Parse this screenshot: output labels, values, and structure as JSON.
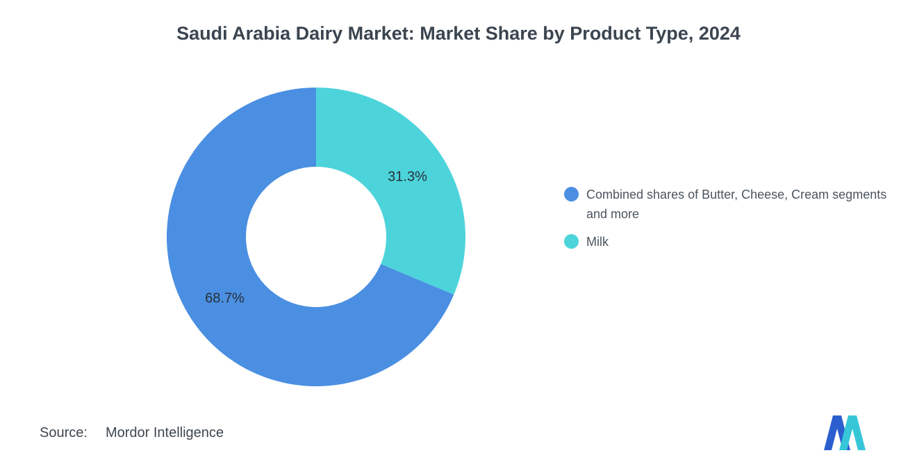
{
  "title": "Saudi Arabia Dairy Market: Market Share by Product Type, 2024",
  "chart_data": {
    "type": "pie",
    "subtype": "donut",
    "title": "Saudi Arabia Dairy Market: Market Share by Product Type, 2024",
    "unit": "%",
    "start_angle": 112.7,
    "center": [
      455,
      341
    ],
    "outer_radius": 215,
    "inner_radius": 101,
    "legend_position": "right",
    "segments": [
      {
        "id": "combined",
        "label": "Combined shares of Butter, Cheese, Cream segments and more",
        "value": 68.7,
        "display": "68.7%",
        "color": "#4a8fe2"
      },
      {
        "id": "milk",
        "label": "Milk",
        "value": 31.3,
        "display": "31.3%",
        "color": "#4dd4db"
      }
    ]
  },
  "source": {
    "prefix": "Source:",
    "text": "Mordor Intelligence"
  },
  "logo": {
    "name": "mordor-intelligence-logo",
    "blue": "#2b5fd0",
    "teal": "#36c6d8"
  }
}
